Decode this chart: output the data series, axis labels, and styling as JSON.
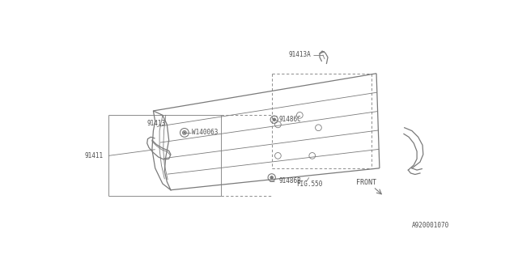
{
  "bg_color": "#ffffff",
  "line_color": "#7a7a7a",
  "text_color": "#505050",
  "fig_ref": "A920001070",
  "fig550": "FIG.550",
  "front_label": "FRONT",
  "panel_color": "#909090"
}
